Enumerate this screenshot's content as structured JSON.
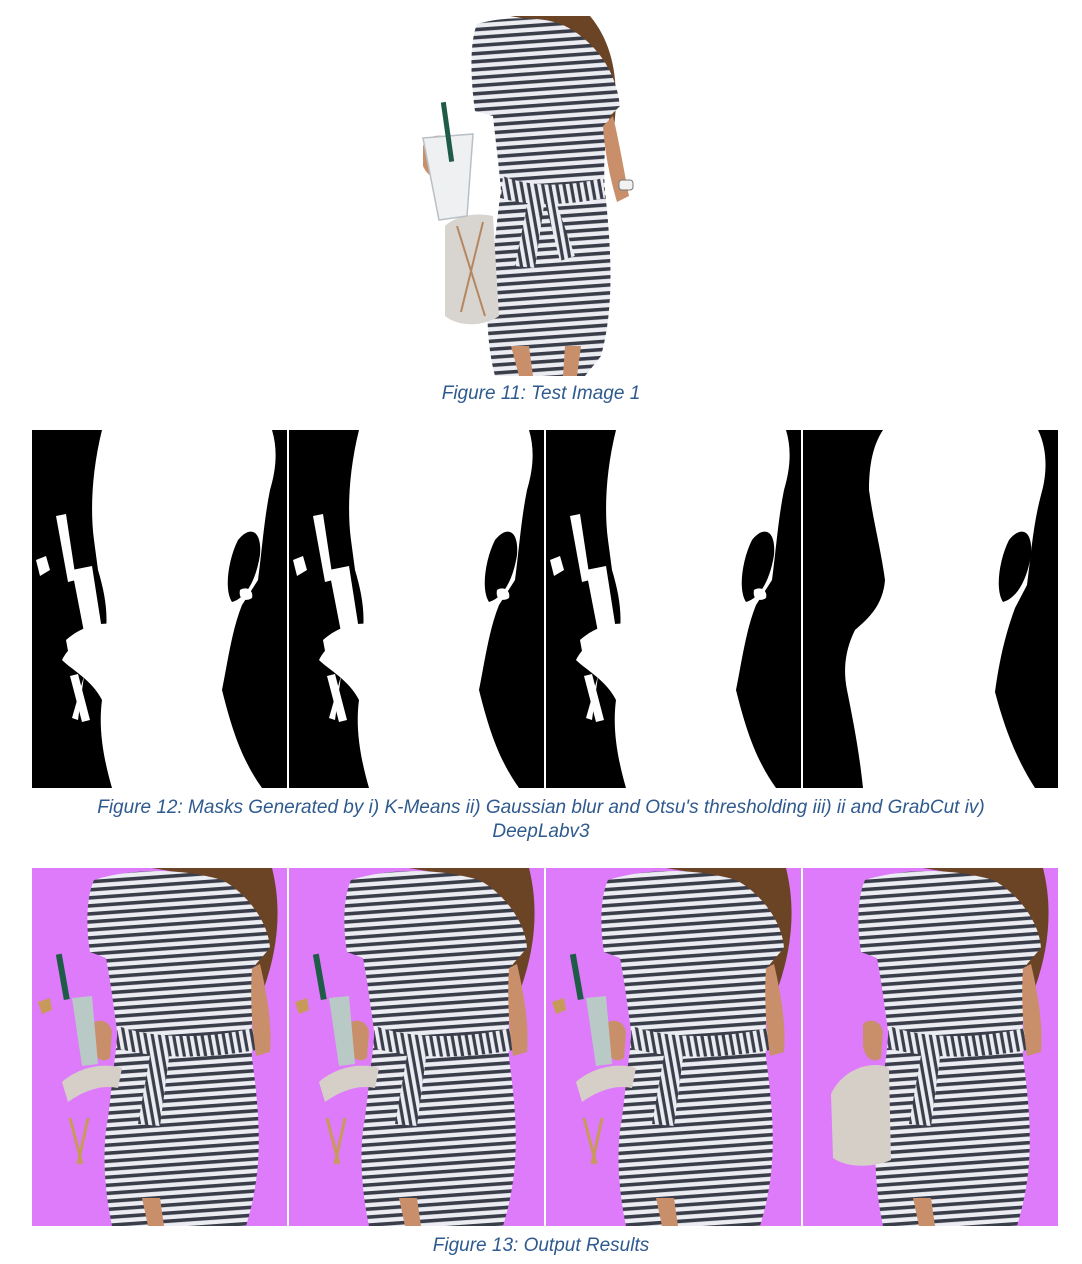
{
  "figures": [
    {
      "id": "fig11",
      "caption": "Figure 11: Test Image 1",
      "panels": [
        {
          "content": "photo of woman in striped dress holding a cup"
        }
      ]
    },
    {
      "id": "fig12",
      "caption_line1": "Figure 12: Masks Generated by i) K-Means ii) Gaussian blur and Otsu's thresholding iii) ii and GrabCut iv)",
      "caption_line2": "DeepLabv3",
      "panels": [
        {
          "method": "i"
        },
        {
          "method": "ii"
        },
        {
          "method": "iii"
        },
        {
          "method": "iv"
        }
      ]
    },
    {
      "id": "fig13",
      "caption": "Figure 13: Output Results",
      "panels": [
        {
          "method": "i"
        },
        {
          "method": "ii"
        },
        {
          "method": "iii"
        },
        {
          "method": "iv"
        }
      ],
      "background_color": "#dd7bfa"
    }
  ],
  "colors": {
    "caption": "#2f5a8e",
    "mask_bg": "#000000",
    "mask_fg": "#ffffff",
    "output_bg": "#dd7bfa",
    "stripe_dark": "#3a3d4a",
    "stripe_light": "#e9eaef",
    "skin": "#c98f6b",
    "hair": "#6b4426"
  }
}
